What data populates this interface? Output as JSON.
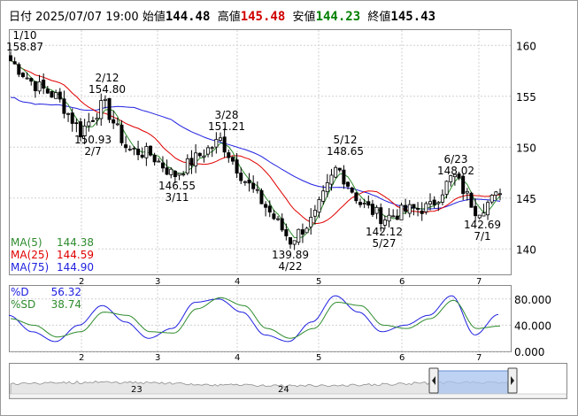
{
  "header": {
    "date_label": "日付",
    "date_value": "2025/07/07 19:00",
    "open_label": "始値",
    "open_value": "144.48",
    "high_label": "高値",
    "high_value": "145.48",
    "low_label": "安値",
    "low_value": "144.23",
    "close_label": "終値",
    "close_value": "145.43",
    "colors": {
      "high": "#d00000",
      "low": "#008000",
      "text": "#000000"
    }
  },
  "price_axis": [
    "160",
    "155",
    "150",
    "145",
    "140"
  ],
  "month_axis": [
    "2",
    "3",
    "4",
    "5",
    "6",
    "7"
  ],
  "annotations": [
    {
      "date": "1/10",
      "value": "158.87"
    },
    {
      "date": "2/12",
      "value": "154.80"
    },
    {
      "date": "2/7",
      "value": "150.93"
    },
    {
      "date": "3/28",
      "value": "151.21"
    },
    {
      "date": "3/11",
      "value": "146.55"
    },
    {
      "date": "5/12",
      "value": "148.65"
    },
    {
      "date": "4/22",
      "value": "139.89"
    },
    {
      "date": "5/27",
      "value": "142.12"
    },
    {
      "date": "6/23",
      "value": "148.02"
    },
    {
      "date": "7/1",
      "value": "142.69"
    }
  ],
  "ma_legend": [
    {
      "label": "MA(5)",
      "value": "144.38",
      "color": "#2e8b2e"
    },
    {
      "label": "MA(25)",
      "value": "144.59",
      "color": "#e00000"
    },
    {
      "label": "MA(75)",
      "value": "144.90",
      "color": "#2020e0"
    }
  ],
  "stoch_legend": [
    {
      "label": "%D",
      "value": "56.32",
      "color": "#2020e0"
    },
    {
      "label": "%SD",
      "value": "38.74",
      "color": "#2e8b2e"
    }
  ],
  "stoch_axis": [
    "80.000",
    "40.000",
    "0.000"
  ],
  "navigator_labels": [
    "23",
    "24"
  ],
  "colors": {
    "up": "#ffffff",
    "down": "#000000",
    "grid": "#c8c8c8",
    "nav_selection": "#a8c4f0"
  },
  "chart_data": [
    {
      "type": "candlestick",
      "title": "",
      "x_labels": [
        "2",
        "3",
        "4",
        "5",
        "6",
        "7"
      ],
      "ylim": [
        137.5,
        161.5
      ],
      "y_ticks": [
        140,
        145,
        150,
        155,
        160
      ],
      "ohlc_close_path": [
        {
          "date": "1/10",
          "close": 158.5
        },
        {
          "date": "1/20",
          "close": 156.2
        },
        {
          "date": "1/31",
          "close": 154.9
        },
        {
          "date": "2/7",
          "close": 151.5
        },
        {
          "date": "2/12",
          "close": 154.3
        },
        {
          "date": "2/20",
          "close": 149.8
        },
        {
          "date": "3/3",
          "close": 149.3
        },
        {
          "date": "3/11",
          "close": 147.2
        },
        {
          "date": "3/20",
          "close": 149.0
        },
        {
          "date": "3/28",
          "close": 150.7
        },
        {
          "date": "4/4",
          "close": 146.9
        },
        {
          "date": "4/11",
          "close": 144.0
        },
        {
          "date": "4/22",
          "close": 140.8
        },
        {
          "date": "5/1",
          "close": 143.0
        },
        {
          "date": "5/12",
          "close": 148.1
        },
        {
          "date": "5/20",
          "close": 144.5
        },
        {
          "date": "5/27",
          "close": 143.0
        },
        {
          "date": "6/5",
          "close": 143.8
        },
        {
          "date": "6/13",
          "close": 144.1
        },
        {
          "date": "6/23",
          "close": 147.3
        },
        {
          "date": "7/1",
          "close": 143.7
        },
        {
          "date": "7/7",
          "close": 145.43
        }
      ],
      "series": [
        {
          "name": "MA(5)",
          "last": 144.38
        },
        {
          "name": "MA(25)",
          "last": 144.59
        },
        {
          "name": "MA(75)",
          "last": 144.9
        }
      ]
    },
    {
      "type": "line",
      "title": "",
      "ylim": [
        0,
        100
      ],
      "y_ticks": [
        0,
        40,
        80
      ],
      "series": [
        {
          "name": "%D",
          "values": [
            55,
            30,
            15,
            40,
            70,
            45,
            20,
            35,
            75,
            80,
            60,
            25,
            15,
            45,
            85,
            60,
            30,
            40,
            55,
            85,
            25,
            56.32
          ]
        },
        {
          "name": "%SD",
          "values": [
            50,
            40,
            22,
            30,
            60,
            55,
            30,
            28,
            65,
            82,
            70,
            35,
            20,
            35,
            75,
            70,
            40,
            35,
            50,
            78,
            35,
            38.74
          ]
        }
      ]
    }
  ]
}
